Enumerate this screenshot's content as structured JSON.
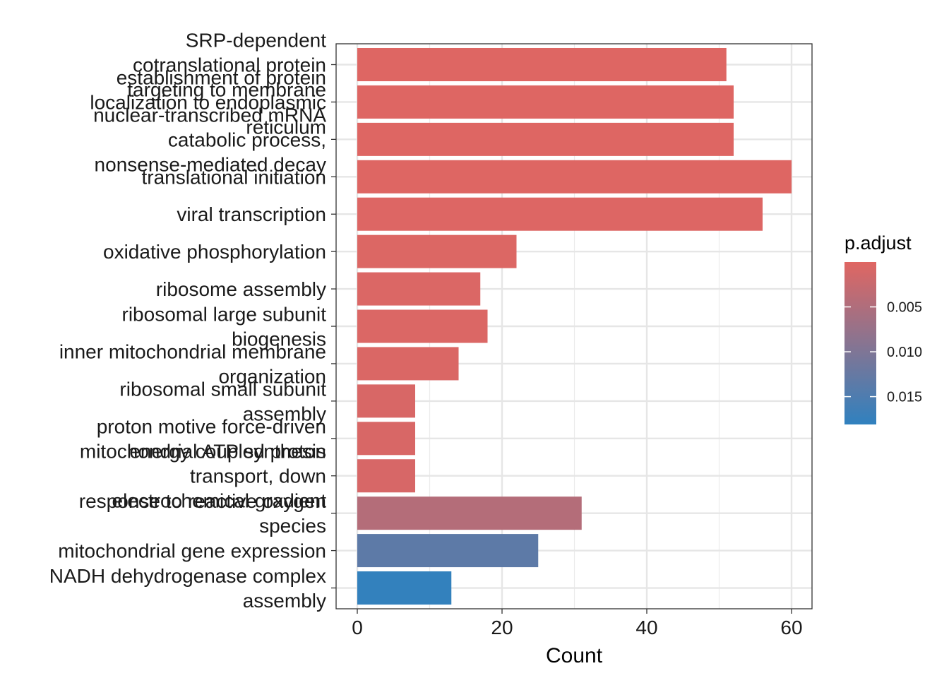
{
  "chart_data": {
    "type": "bar",
    "orientation": "horizontal",
    "xlabel": "Count",
    "ylabel": "",
    "xlim": [
      -1.5,
      63
    ],
    "xticks": [
      0,
      20,
      40,
      60
    ],
    "grid": true,
    "categories": [
      "SRP-dependent\ncotranslational protein\ntargeting to membrane",
      "establishment of protein\nlocalization to endoplasmic\nreticulum",
      "nuclear-transcribed mRNA\ncatabolic process,\nnonsense-mediated decay",
      "translational initiation",
      "viral transcription",
      "oxidative phosphorylation",
      "ribosome assembly",
      "ribosomal large subunit\nbiogenesis",
      "inner mitochondrial membrane\norganization",
      "ribosomal small subunit\nassembly",
      "proton motive force-driven\nmitochondrial ATP synthesis",
      "energy coupled proton\ntransport, down\nelectrochemical gradient",
      "response to reactive oxygen\nspecies",
      "mitochondrial gene expression",
      "NADH dehydrogenase complex\nassembly"
    ],
    "values": [
      51,
      52,
      52,
      60,
      56,
      22,
      17,
      18,
      14,
      8,
      8,
      8,
      31,
      25,
      13
    ],
    "p_adjust": [
      0.0002,
      0.0002,
      0.0002,
      0.0002,
      0.0003,
      0.0004,
      0.0005,
      0.0005,
      0.0006,
      0.0008,
      0.0008,
      0.0009,
      0.0045,
      0.0135,
      0.0178
    ],
    "legend": {
      "title": "p.adjust",
      "position": "right",
      "ticks": [
        "0.005",
        "0.010",
        "0.015"
      ],
      "tick_values": [
        0.005,
        0.01,
        0.015
      ],
      "range": [
        0.0,
        0.0181
      ],
      "color_low": "#E06662",
      "color_high": "#3081BF"
    }
  }
}
